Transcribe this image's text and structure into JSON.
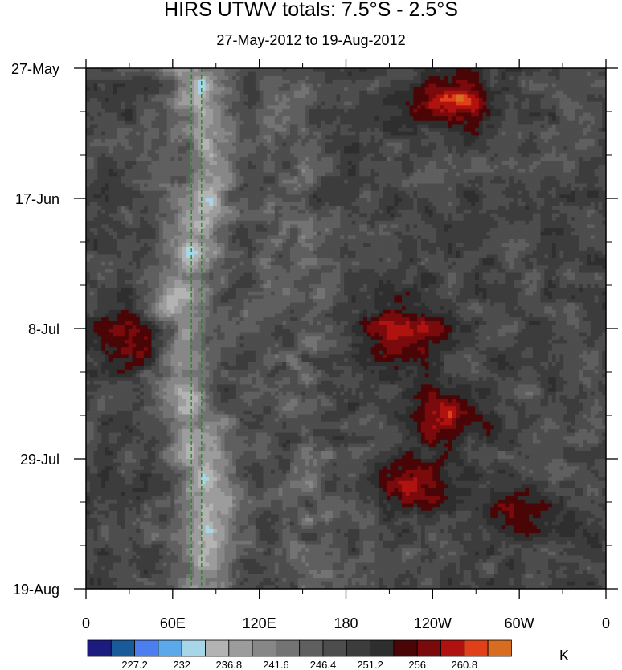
{
  "chart_data": {
    "type": "heatmap",
    "title": "HIRS UTWV totals: 7.5°S - 2.5°S",
    "subtitle": "27-May-2012 to 19-Aug-2012",
    "x_axis": {
      "tick_labels": [
        "0",
        "60E",
        "120E",
        "180",
        "120W",
        "60W",
        "0"
      ],
      "tick_values_deg_east": [
        0,
        60,
        120,
        180,
        240,
        300,
        360
      ],
      "range": [
        0,
        360
      ]
    },
    "y_axis": {
      "tick_labels": [
        "27-May",
        "17-Jun",
        "8-Jul",
        "29-Jul",
        "19-Aug"
      ],
      "tick_dates": [
        "2012-05-27",
        "2012-06-17",
        "2012-07-08",
        "2012-07-29",
        "2012-08-19"
      ],
      "range": [
        "2012-05-27",
        "2012-08-19"
      ],
      "direction": "time increases downward"
    },
    "colorbar": {
      "units": "K",
      "labels": [
        "227.2",
        "232",
        "236.8",
        "241.6",
        "246.4",
        "251.2",
        "256",
        "260.8"
      ],
      "levels": [
        224.8,
        227.2,
        229.6,
        232,
        234.4,
        236.8,
        239.2,
        241.6,
        244,
        246.4,
        248.8,
        251.2,
        253.6,
        256,
        258.4,
        260.8,
        263.2
      ],
      "colors": [
        "#1c1c80",
        "#185a9a",
        "#4d7ef0",
        "#5ba8ea",
        "#a6d6e8",
        "#b3b3b3",
        "#9c9c9c",
        "#878787",
        "#737373",
        "#5f5f5f",
        "#4d4d4d",
        "#3c3c3c",
        "#2e2e2e",
        "#4a0506",
        "#7a0a0c",
        "#b0130f",
        "#e04019",
        "#d86d22"
      ]
    },
    "reference_lines": {
      "style": "green dashed vertical",
      "color": "#1f8f1f",
      "longitudes_deg_east": [
        73,
        80
      ]
    },
    "features": {
      "cold_moist_band": {
        "lon_center": 75,
        "lon_width": 28,
        "description_values": "lowest values ~229-236 K"
      },
      "warm_dry_regions": [
        {
          "lon": 255,
          "date": "2012-06-01",
          "value": 262
        },
        {
          "lon": 220,
          "date": "2012-07-09",
          "value": 261
        },
        {
          "lon": 245,
          "date": "2012-07-22",
          "value": 259
        },
        {
          "lon": 225,
          "date": "2012-08-02",
          "value": 259
        },
        {
          "lon": 300,
          "date": "2012-08-07",
          "value": 258
        },
        {
          "lon": 37,
          "date": "2012-07-10",
          "value": 259
        }
      ]
    }
  }
}
